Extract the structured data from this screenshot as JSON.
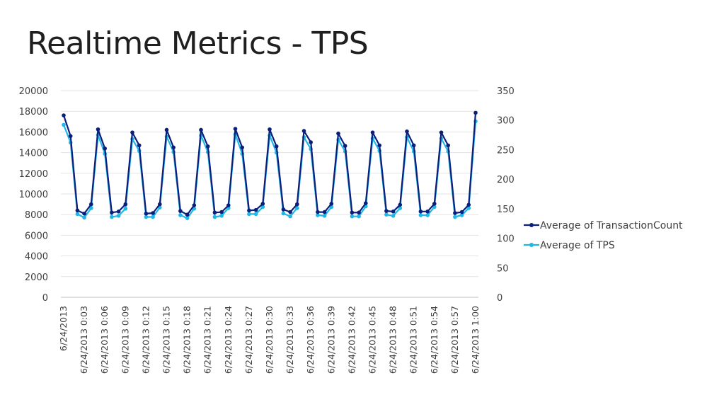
{
  "slide": {
    "title": "Realtime Metrics - TPS"
  },
  "chart_data": {
    "type": "line",
    "title": "",
    "xlabel": "",
    "ylabel": "",
    "y2label": "",
    "ylim": [
      0,
      20000
    ],
    "yticks": [
      0,
      2000,
      4000,
      6000,
      8000,
      10000,
      12000,
      14000,
      16000,
      18000,
      20000
    ],
    "ylim2": [
      0,
      350
    ],
    "y2ticks": [
      0,
      50,
      100,
      150,
      200,
      250,
      300,
      350
    ],
    "grid": true,
    "legend_position": "right",
    "x_label_every": 3,
    "xtick_labels": [
      "6/24/2013",
      "6/24/2013 0:03",
      "6/24/2013 0:06",
      "6/24/2013 0:09",
      "6/24/2013 0:12",
      "6/24/2013 0:15",
      "6/24/2013 0:18",
      "6/24/2013 0:21",
      "6/24/2013 0:24",
      "6/24/2013 0:27",
      "6/24/2013 0:30",
      "6/24/2013 0:33",
      "6/24/2013 0:36",
      "6/24/2013 0:39",
      "6/24/2013 0:42",
      "6/24/2013 0:45",
      "6/24/2013 0:48",
      "6/24/2013 0:51",
      "6/24/2013 0:54",
      "6/24/2013 0:57",
      "6/24/2013 1:00"
    ],
    "series": [
      {
        "name": "Average of TransactionCount",
        "axis": "left",
        "color": "#0a1f7a",
        "values": [
          17600,
          15600,
          8400,
          8100,
          9000,
          16250,
          14400,
          8200,
          8300,
          9000,
          15950,
          14700,
          8100,
          8150,
          9000,
          16200,
          14500,
          8350,
          8000,
          8900,
          16200,
          14600,
          8200,
          8250,
          8900,
          16300,
          14500,
          8400,
          8450,
          9050,
          16250,
          14600,
          8500,
          8250,
          9000,
          16100,
          15000,
          8250,
          8250,
          9050,
          15850,
          14650,
          8200,
          8200,
          9100,
          15950,
          14700,
          8350,
          8300,
          8950,
          16050,
          14700,
          8300,
          8300,
          9050,
          15950,
          14700,
          8150,
          8250,
          8950,
          17850
        ]
      },
      {
        "name": "Average of TPS",
        "axis": "right",
        "color": "#20b6e6",
        "values": [
          292,
          262,
          141,
          135,
          151,
          275,
          243,
          136,
          138,
          150,
          268,
          248,
          136,
          136,
          152,
          272,
          246,
          139,
          134,
          150,
          274,
          246,
          136,
          138,
          151,
          276,
          243,
          141,
          141,
          153,
          274,
          245,
          142,
          137,
          151,
          271,
          251,
          139,
          138,
          153,
          267,
          247,
          137,
          137,
          154,
          269,
          248,
          140,
          138,
          151,
          271,
          247,
          139,
          139,
          153,
          269,
          247,
          136,
          139,
          151,
          298
        ]
      }
    ]
  }
}
